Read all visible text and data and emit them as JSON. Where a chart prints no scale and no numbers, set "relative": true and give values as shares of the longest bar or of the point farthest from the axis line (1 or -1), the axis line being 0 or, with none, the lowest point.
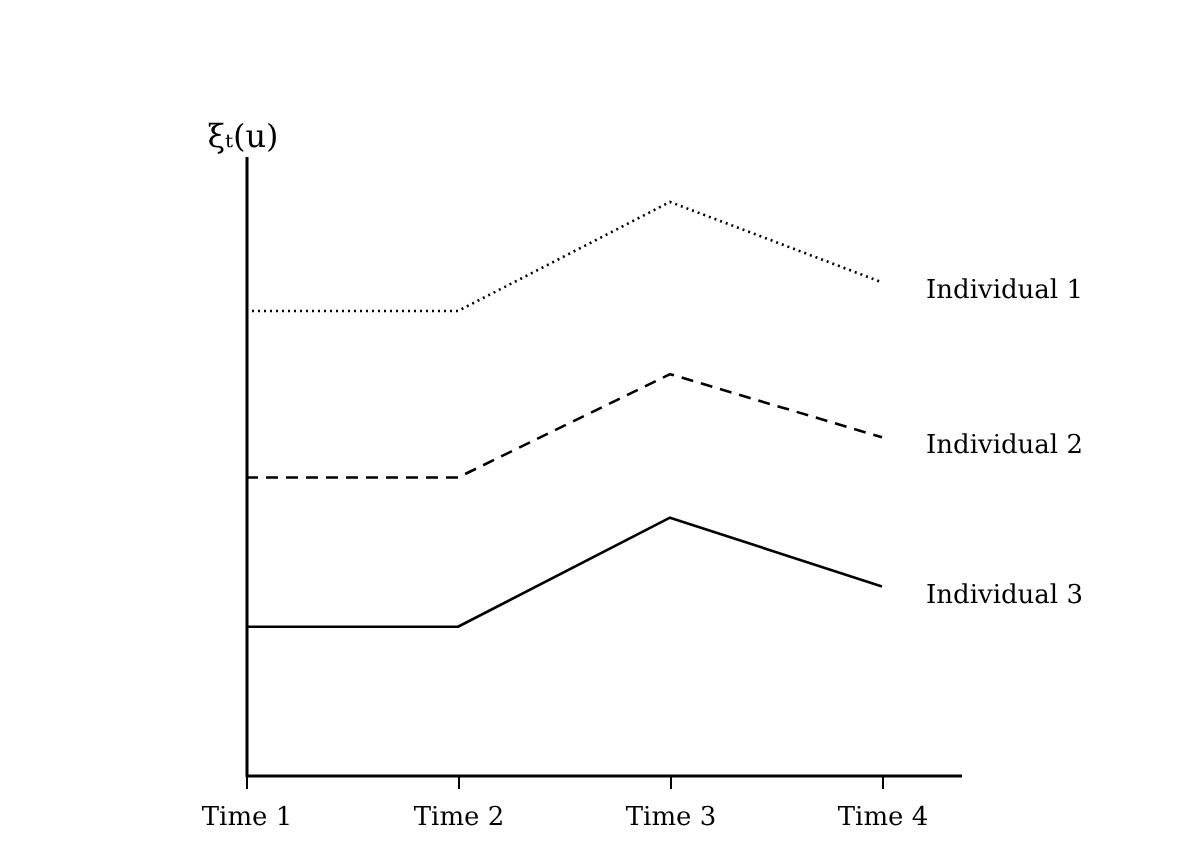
{
  "chart_data": {
    "type": "line",
    "ylabel": "ξₜ(u)",
    "relative": true,
    "categories": [
      "Time 1",
      "Time 2",
      "Time 3",
      "Time 4"
    ],
    "grid": false,
    "legend": false,
    "series": [
      {
        "name": "Individual 1",
        "color": "#000000",
        "line_style": "dotted",
        "values": [
          0.81,
          0.81,
          1,
          0.86
        ]
      },
      {
        "name": "Individual 2",
        "color": "#000000",
        "line_style": "dashed",
        "values": [
          0.52,
          0.52,
          0.7,
          0.59
        ]
      },
      {
        "name": "Individual 3",
        "color": "#000000",
        "line_style": "solid",
        "values": [
          0.26,
          0.26,
          0.45,
          0.33
        ]
      }
    ]
  }
}
